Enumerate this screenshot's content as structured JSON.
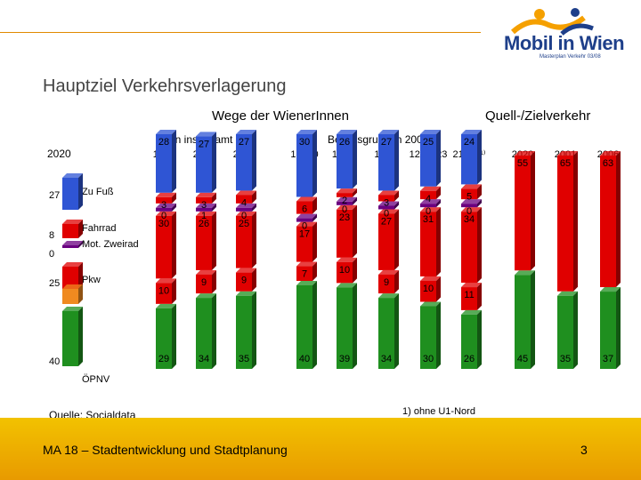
{
  "brand": {
    "logo_text": "Mobil in Wien",
    "logo_sub": "Masterplan Verkehr 03/08"
  },
  "slide": {
    "title": "Hauptziel Verkehrsverlagerung",
    "footer": "MA 18 – Stadtentwicklung und Stadtplanung",
    "page": "3",
    "source": "Quelle: Socialdata",
    "footnote": "1) ohne U1-Nord"
  },
  "headers": {
    "main": "Wege der WienerInnen",
    "right": "Quell-/Zielverkehr",
    "wien": "Wien insgesamt",
    "bezirk": "Bezirksgruppen 2006"
  },
  "legend": {
    "year": "2020",
    "labels": [
      "Zu Fuß",
      "Fahrrad",
      "Mot. Zweirad",
      "Pkw",
      "ÖPNV"
    ],
    "values": [
      "27",
      "8",
      "0",
      "25",
      "40"
    ]
  },
  "chart_data": {
    "type": "bar",
    "stacked": true,
    "ylim": [
      0,
      100
    ],
    "categories": [
      "1993",
      "2001",
      "2006",
      "1-9,20",
      "14-19",
      "10-11",
      "12,13,23",
      "21,22 ¹⁾",
      "2020",
      "2001",
      "2006"
    ],
    "series": [
      {
        "name": "ÖPNV",
        "color": "#1f8f1f",
        "values": [
          29,
          34,
          35,
          40,
          39,
          34,
          30,
          26,
          45,
          35,
          37
        ]
      },
      {
        "name": "Pkw Mitfahrer",
        "color": "#e00000",
        "values": [
          10,
          9,
          9,
          7,
          10,
          9,
          10,
          11,
          null,
          null,
          null
        ]
      },
      {
        "name": "Pkw",
        "color": "#e00000",
        "values": [
          30,
          26,
          25,
          17,
          23,
          27,
          31,
          34,
          55,
          65,
          63
        ]
      },
      {
        "name": "Mot. Zweirad",
        "color": "#6a0080",
        "values": [
          0,
          1,
          0,
          0,
          0,
          0,
          0,
          0,
          null,
          null,
          null
        ]
      },
      {
        "name": "Fahrrad",
        "color": "#e00000",
        "values": [
          3,
          3,
          4,
          6,
          2,
          3,
          4,
          5,
          null,
          null,
          null
        ]
      },
      {
        "name": "Zu Fuß",
        "color": "#2f55d4",
        "values": [
          28,
          27,
          27,
          30,
          26,
          27,
          25,
          24,
          null,
          null,
          null
        ]
      }
    ]
  }
}
